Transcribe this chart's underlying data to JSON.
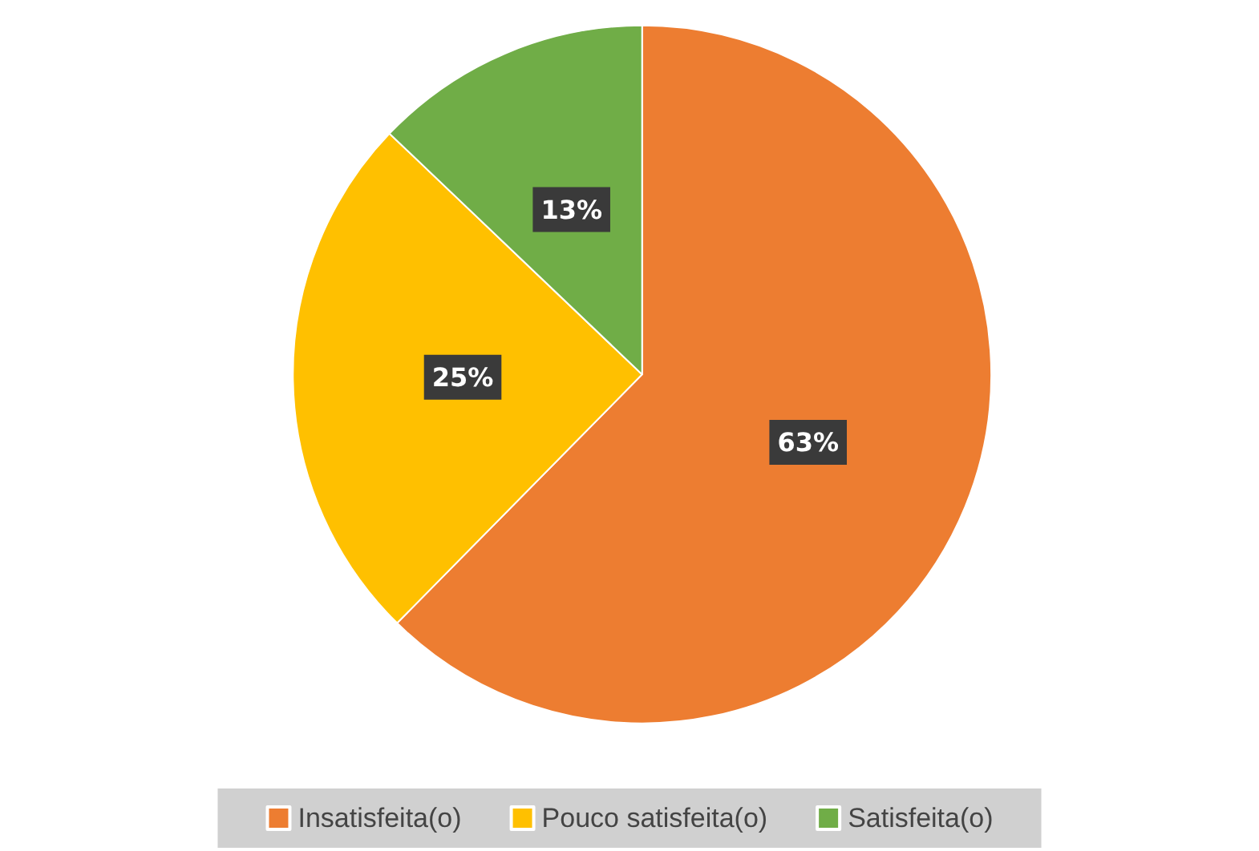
{
  "chart_data": {
    "type": "pie",
    "categories": [
      "Insatisfeita(o)",
      "Pouco satisfeita(o)",
      "Satisfeita(o)"
    ],
    "values": [
      63,
      25,
      13
    ],
    "colors": [
      "#ed7d31",
      "#ffc000",
      "#70ad47"
    ],
    "value_labels": [
      "63%",
      "25%",
      "13%"
    ],
    "legend": "bottom"
  }
}
